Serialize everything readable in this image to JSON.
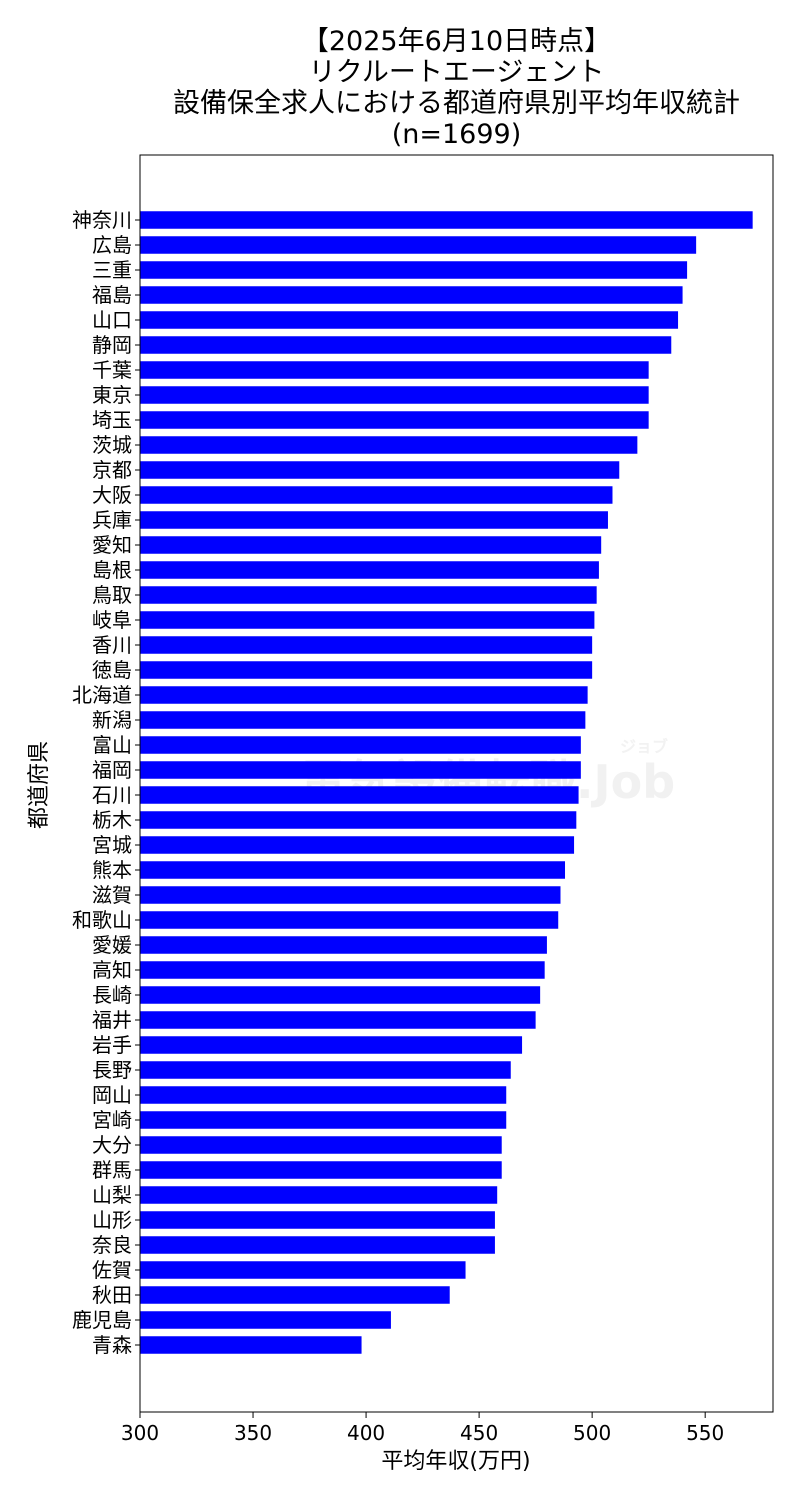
{
  "chart_data": {
    "type": "bar",
    "orientation": "horizontal",
    "title_lines": [
      "【2025年6月10日時点】",
      "リクルートエージェント",
      "設備保全求人における都道府県別平均年収統計",
      "(n=1699)"
    ],
    "xlabel": "平均年収(万円)",
    "ylabel": "都道府県",
    "xlim": [
      300,
      580
    ],
    "xticks": [
      300,
      350,
      400,
      450,
      500,
      550
    ],
    "bar_color": "#0000ff",
    "grid": false,
    "categories": [
      "神奈川",
      "広島",
      "三重",
      "福島",
      "山口",
      "静岡",
      "千葉",
      "東京",
      "埼玉",
      "茨城",
      "京都",
      "大阪",
      "兵庫",
      "愛知",
      "島根",
      "鳥取",
      "岐阜",
      "香川",
      "徳島",
      "北海道",
      "新潟",
      "富山",
      "福岡",
      "石川",
      "栃木",
      "宮城",
      "熊本",
      "滋賀",
      "和歌山",
      "愛媛",
      "高知",
      "長崎",
      "福井",
      "岩手",
      "長野",
      "岡山",
      "宮崎",
      "大分",
      "群馬",
      "山梨",
      "山形",
      "奈良",
      "佐賀",
      "秋田",
      "鹿児島",
      "青森"
    ],
    "values": [
      571,
      546,
      542,
      540,
      538,
      535,
      525,
      525,
      525,
      520,
      512,
      509,
      507,
      504,
      503,
      502,
      501,
      500,
      500,
      498,
      497,
      495,
      495,
      494,
      493,
      492,
      488,
      486,
      485,
      480,
      479,
      477,
      475,
      469,
      464,
      462,
      462,
      460,
      460,
      458,
      457,
      457,
      444,
      437,
      411,
      398
    ]
  },
  "watermark": {
    "text": "電気設備転職.Job",
    "small": "ジョブ"
  }
}
